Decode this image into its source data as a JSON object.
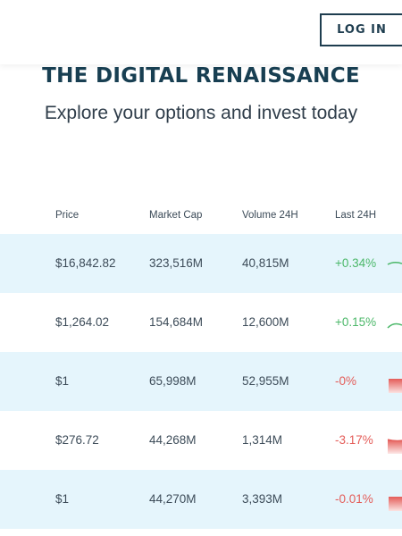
{
  "header": {
    "login_label": "LOG IN"
  },
  "hero": {
    "title": "THE DIGITAL RENAISSANCE",
    "subtitle": "Explore your options and invest today"
  },
  "table": {
    "columns": [
      "Price",
      "Market Cap",
      "Volume 24H",
      "Last 24H"
    ],
    "rows": [
      {
        "price": "$16,842.82",
        "market_cap": "323,516M",
        "volume": "40,815M",
        "change": "+0.34%",
        "trend": "up"
      },
      {
        "price": "$1,264.02",
        "market_cap": "154,684M",
        "volume": "12,600M",
        "change": "+0.15%",
        "trend": "up"
      },
      {
        "price": "$1",
        "market_cap": "65,998M",
        "volume": "52,955M",
        "change": "-0%",
        "trend": "down"
      },
      {
        "price": "$276.72",
        "market_cap": "44,268M",
        "volume": "1,314M",
        "change": "-3.17%",
        "trend": "down"
      },
      {
        "price": "$1",
        "market_cap": "44,270M",
        "volume": "3,393M",
        "change": "-0.01%",
        "trend": "down"
      }
    ]
  },
  "colors": {
    "brand_dark": "#183f52",
    "row_shade": "#e5f5fc",
    "positive": "#4cb86a",
    "negative": "#e45c58"
  }
}
